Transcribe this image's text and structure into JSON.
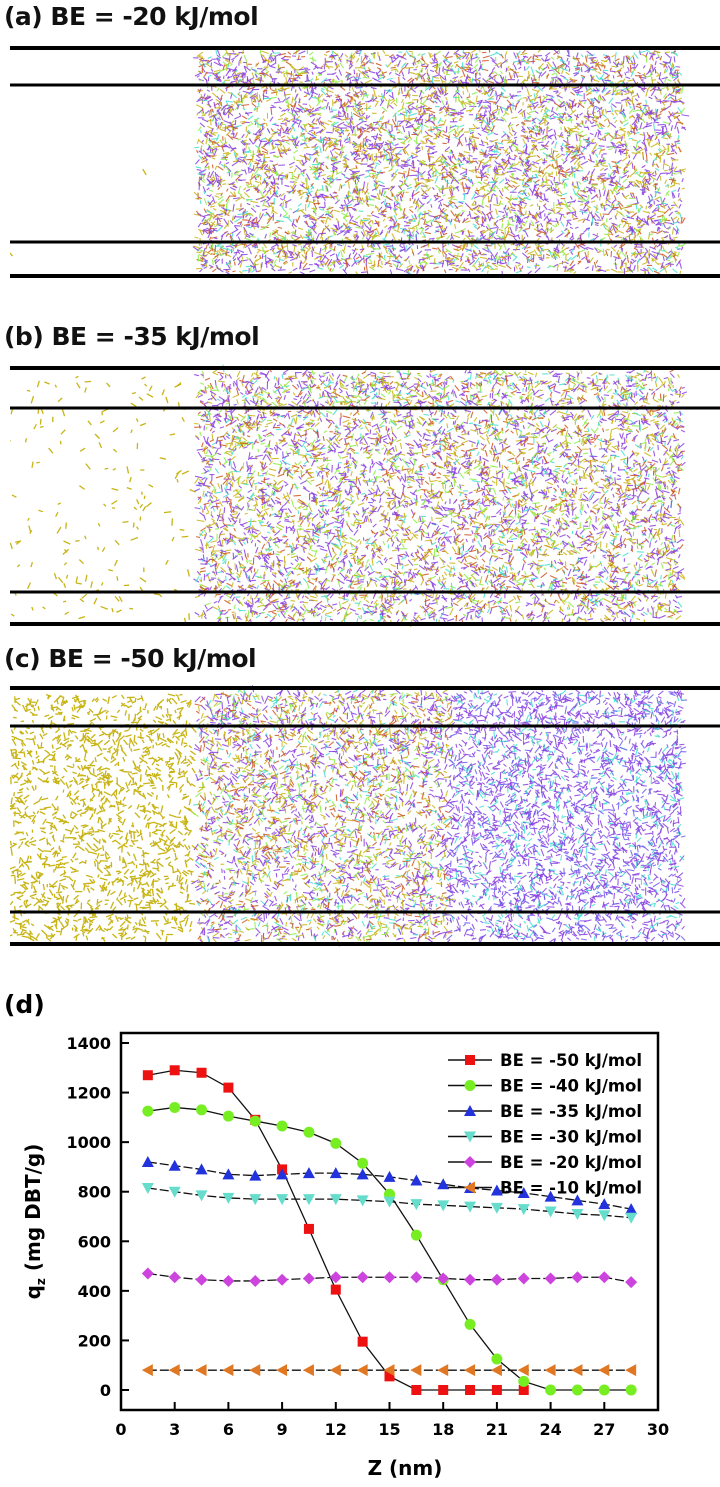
{
  "panels": [
    {
      "id": "a",
      "title": "(a) BE = -20 kJ/mol",
      "yellow_left_density": "none",
      "purple_right_only": false
    },
    {
      "id": "b",
      "title": "(b) BE = -35 kJ/mol",
      "yellow_left_density": "sparse",
      "purple_right_only": false
    },
    {
      "id": "c",
      "title": "(c) BE = -50 kJ/mol",
      "yellow_left_density": "dense",
      "purple_right_only": true
    }
  ],
  "colors": {
    "yellow": "#c8b414",
    "purple": "#8a3fe0",
    "cyan": "#40e0d0",
    "wall": "#000000"
  },
  "chart_panel_label": "(d)",
  "chart_data": {
    "type": "line",
    "title": "",
    "xlabel": "Z (nm)",
    "ylabel": "q_z (mg DBT/g)",
    "ylabel_main": "q",
    "ylabel_sub": "z",
    "ylabel_rest": " (mg DBT/g)",
    "xlim": [
      0,
      30
    ],
    "ylim": [
      -80,
      1500
    ],
    "xticks": [
      0,
      3,
      6,
      9,
      12,
      15,
      18,
      21,
      24,
      27,
      30
    ],
    "yticks": [
      0,
      200,
      400,
      600,
      800,
      1000,
      1200,
      1400
    ],
    "grid": false,
    "legend_position": "top-right",
    "x": [
      1.5,
      3,
      4.5,
      6,
      7.5,
      9,
      10.5,
      12,
      13.5,
      15,
      16.5,
      18,
      19.5,
      21,
      22.5,
      24,
      25.5,
      27,
      28.5
    ],
    "series": [
      {
        "name": "BE = -50 kJ/mol",
        "marker": "square",
        "color": "#ee1111",
        "values": [
          1270,
          1290,
          1280,
          1220,
          1090,
          890,
          650,
          405,
          195,
          55,
          0,
          0,
          0,
          0,
          0,
          null,
          null,
          null,
          null
        ]
      },
      {
        "name": "BE = -40 kJ/mol",
        "marker": "circle",
        "color": "#77ee22",
        "values": [
          1125,
          1140,
          1130,
          1105,
          1085,
          1065,
          1040,
          995,
          915,
          790,
          625,
          445,
          265,
          125,
          35,
          0,
          0,
          0,
          0
        ]
      },
      {
        "name": "BE = -35 kJ/mol",
        "marker": "triangle-up",
        "color": "#2233dd",
        "values": [
          920,
          905,
          890,
          870,
          865,
          870,
          875,
          875,
          870,
          860,
          845,
          830,
          815,
          805,
          795,
          780,
          765,
          750,
          730
        ]
      },
      {
        "name": "BE = -30 kJ/mol",
        "marker": "triangle-down",
        "color": "#66ddcc",
        "values": [
          815,
          800,
          785,
          775,
          770,
          770,
          770,
          770,
          765,
          760,
          750,
          745,
          740,
          735,
          730,
          720,
          710,
          705,
          695
        ]
      },
      {
        "name": "BE = -20 kJ/mol",
        "marker": "diamond",
        "color": "#cc44dd",
        "values": [
          470,
          455,
          445,
          440,
          440,
          445,
          450,
          455,
          455,
          455,
          455,
          450,
          445,
          445,
          450,
          450,
          455,
          455,
          435
        ]
      },
      {
        "name": "BE = -10 kJ/mol",
        "marker": "triangle-left",
        "color": "#e07722",
        "values": [
          80,
          80,
          80,
          80,
          80,
          80,
          80,
          80,
          80,
          80,
          80,
          80,
          80,
          80,
          80,
          80,
          80,
          80,
          80
        ]
      }
    ]
  }
}
